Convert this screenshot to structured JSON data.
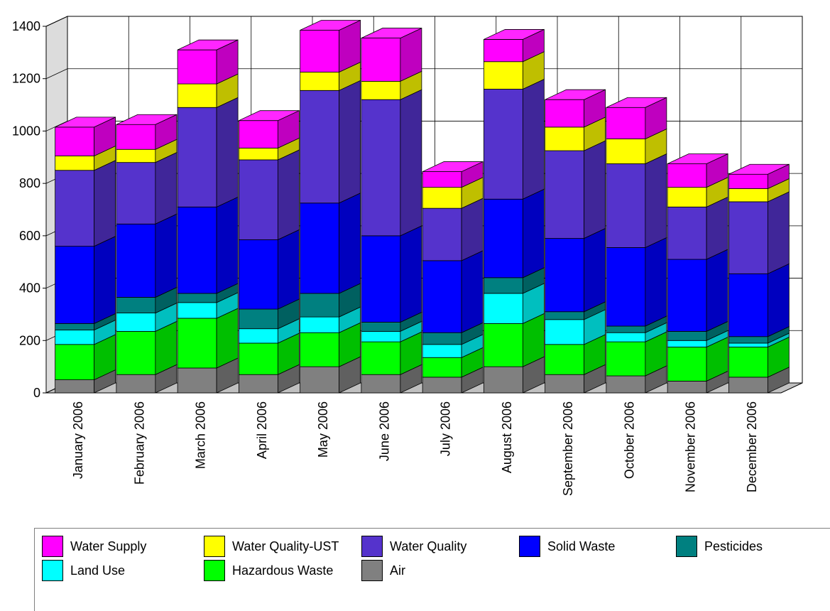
{
  "chart_data": {
    "type": "bar",
    "stacked": true,
    "three_d": true,
    "categories": [
      "January  2006",
      "February  2006",
      "March  2006",
      "April  2006",
      "May  2006",
      "June  2006",
      "July  2006",
      "August  2006",
      "September  2006",
      "October  2006",
      "November  2006",
      "December  2006"
    ],
    "ylim": [
      0,
      1400
    ],
    "yticks": [
      "0",
      "200",
      "400",
      "600",
      "800",
      "1000",
      "1200",
      "1400"
    ],
    "grid": true,
    "legend_position": "bottom",
    "series": [
      {
        "name": "Air",
        "color": "#808080",
        "values": [
          50,
          70,
          95,
          70,
          100,
          70,
          60,
          100,
          70,
          65,
          45,
          60
        ]
      },
      {
        "name": "Hazardous Waste",
        "color": "#00ff00",
        "values": [
          135,
          165,
          190,
          120,
          130,
          125,
          75,
          165,
          115,
          130,
          130,
          115
        ]
      },
      {
        "name": "Land Use",
        "color": "#00ffff",
        "values": [
          55,
          70,
          60,
          55,
          60,
          40,
          50,
          115,
          95,
          35,
          25,
          15
        ]
      },
      {
        "name": "Pesticides",
        "color": "#008080",
        "values": [
          25,
          60,
          35,
          75,
          90,
          35,
          45,
          60,
          30,
          25,
          35,
          25
        ]
      },
      {
        "name": "Solid Waste",
        "color": "#0000ff",
        "values": [
          295,
          280,
          330,
          265,
          345,
          330,
          275,
          300,
          280,
          300,
          275,
          240
        ]
      },
      {
        "name": "Water Quality",
        "color": "#5533cc",
        "values": [
          290,
          235,
          380,
          305,
          430,
          520,
          200,
          420,
          335,
          320,
          200,
          275
        ]
      },
      {
        "name": "Water Quality-UST",
        "color": "#ffff00",
        "values": [
          55,
          50,
          90,
          45,
          70,
          70,
          80,
          105,
          90,
          95,
          75,
          50
        ]
      },
      {
        "name": "Water Supply",
        "color": "#ff00ff",
        "values": [
          110,
          95,
          130,
          105,
          160,
          165,
          60,
          85,
          105,
          120,
          90,
          55
        ]
      }
    ]
  },
  "legend": {
    "items": [
      {
        "name": "Water Supply",
        "color": "#ff00ff"
      },
      {
        "name": "Water Quality-UST",
        "color": "#ffff00"
      },
      {
        "name": "Water Quality",
        "color": "#5533cc"
      },
      {
        "name": "Solid Waste",
        "color": "#0000ff"
      },
      {
        "name": "Pesticides",
        "color": "#008080"
      },
      {
        "name": "Land Use",
        "color": "#00ffff"
      },
      {
        "name": "Hazardous Waste",
        "color": "#00ff00"
      },
      {
        "name": "Air",
        "color": "#808080"
      }
    ]
  }
}
